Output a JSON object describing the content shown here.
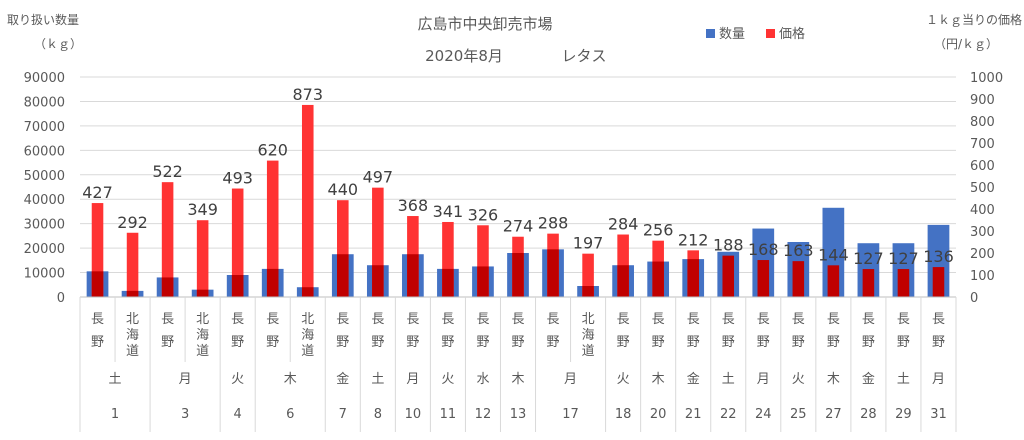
{
  "chart_data": {
    "type": "bar",
    "title": "広島市中央卸売市場",
    "subtitle_period": "2020年8月",
    "subtitle_item": "レタス",
    "y_left_title_line1": "取り扱い数量",
    "y_left_title_line2": "（ｋｇ）",
    "y_right_title_line1": "１ｋｇ当りの価格",
    "y_right_title_line2": "（円/ｋｇ）",
    "ylim_left": [
      0,
      90000
    ],
    "ylim_right": [
      0,
      1000
    ],
    "y_left_ticks": [
      "0",
      "10000",
      "20000",
      "30000",
      "40000",
      "50000",
      "60000",
      "70000",
      "80000",
      "90000"
    ],
    "y_right_ticks": [
      "0",
      "100",
      "200",
      "300",
      "400",
      "500",
      "600",
      "700",
      "800",
      "900",
      "1000"
    ],
    "legend": {
      "position": "top-right",
      "quantity": "数量",
      "price": "価格"
    },
    "colors": {
      "quantity": "#4472C4",
      "price": "#FF3333",
      "price_overlap": "#C00000"
    },
    "categories": [
      {
        "origin": "長野",
        "weekday": "土",
        "day": "1"
      },
      {
        "origin": "北海道",
        "weekday": "土",
        "day": "1"
      },
      {
        "origin": "長野",
        "weekday": "月",
        "day": "3"
      },
      {
        "origin": "北海道",
        "weekday": "月",
        "day": "3"
      },
      {
        "origin": "長野",
        "weekday": "火",
        "day": "4"
      },
      {
        "origin": "長野",
        "weekday": "木",
        "day": "6"
      },
      {
        "origin": "北海道",
        "weekday": "木",
        "day": "6"
      },
      {
        "origin": "長野",
        "weekday": "金",
        "day": "7"
      },
      {
        "origin": "長野",
        "weekday": "土",
        "day": "8"
      },
      {
        "origin": "長野",
        "weekday": "月",
        "day": "10"
      },
      {
        "origin": "長野",
        "weekday": "火",
        "day": "11"
      },
      {
        "origin": "長野",
        "weekday": "水",
        "day": "12"
      },
      {
        "origin": "長野",
        "weekday": "木",
        "day": "13"
      },
      {
        "origin": "長野",
        "weekday": "月",
        "day": "17"
      },
      {
        "origin": "北海道",
        "weekday": "月",
        "day": "17"
      },
      {
        "origin": "長野",
        "weekday": "火",
        "day": "18"
      },
      {
        "origin": "長野",
        "weekday": "木",
        "day": "20"
      },
      {
        "origin": "長野",
        "weekday": "金",
        "day": "21"
      },
      {
        "origin": "長野",
        "weekday": "土",
        "day": "22"
      },
      {
        "origin": "長野",
        "weekday": "月",
        "day": "24"
      },
      {
        "origin": "長野",
        "weekday": "火",
        "day": "25"
      },
      {
        "origin": "長野",
        "weekday": "木",
        "day": "27"
      },
      {
        "origin": "長野",
        "weekday": "金",
        "day": "28"
      },
      {
        "origin": "長野",
        "weekday": "土",
        "day": "29"
      },
      {
        "origin": "長野",
        "weekday": "月",
        "day": "31"
      }
    ],
    "series": [
      {
        "name": "数量",
        "axis": "left",
        "values": [
          10500,
          2500,
          8000,
          3000,
          9000,
          11500,
          4000,
          17500,
          13000,
          17500,
          11500,
          12500,
          18000,
          19500,
          4500,
          13000,
          14500,
          15500,
          18500,
          28000,
          22500,
          36500,
          22000,
          22000,
          29500
        ]
      },
      {
        "name": "価格",
        "axis": "right",
        "values": [
          427,
          292,
          522,
          349,
          493,
          620,
          873,
          440,
          497,
          368,
          341,
          326,
          274,
          288,
          197,
          284,
          256,
          212,
          188,
          168,
          163,
          144,
          127,
          127,
          136
        ]
      }
    ]
  }
}
